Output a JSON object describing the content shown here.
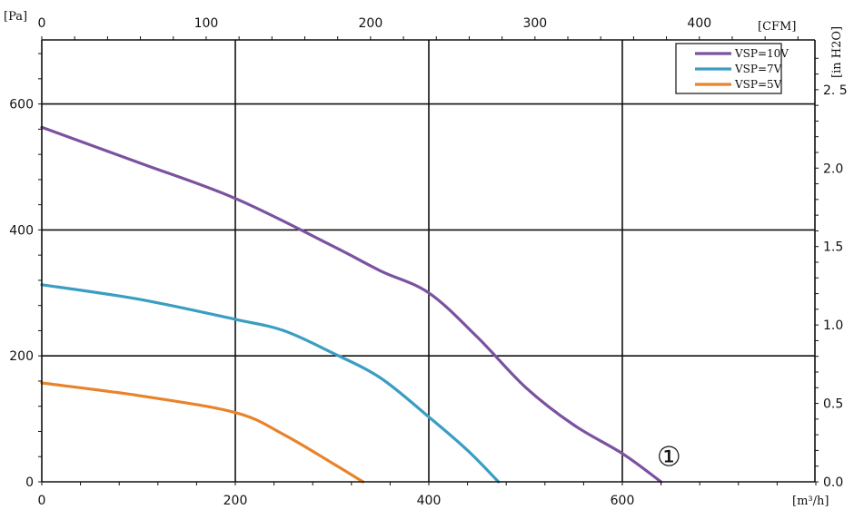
{
  "chart_data": {
    "type": "line",
    "title": "",
    "xlabel": "",
    "ylabel": "",
    "units": {
      "x_bottom": "[m³/h]",
      "x_top": "[CFM]",
      "y_left": "[Pa]",
      "y_right": "[in H2O]"
    },
    "xlim": [
      0,
      820
    ],
    "ylim": [
      0,
      700
    ],
    "x_ticks": [
      0,
      200,
      400,
      600
    ],
    "y_ticks": [
      0,
      200,
      400,
      600
    ],
    "x_top_ticks": [
      0,
      100,
      200,
      300,
      400
    ],
    "x_top_tick_labels": [
      "0",
      "100",
      "200",
      "300",
      "400"
    ],
    "y_right_ticks": [
      0.0,
      0.5,
      1.0,
      1.5,
      2.0,
      2.5
    ],
    "y_right_tick_labels": [
      "0.0",
      "0.5",
      "1.0",
      "1.5",
      "2.0",
      "2. 5"
    ],
    "grid": true,
    "legend_position": "top-right",
    "annotation": {
      "text": "①",
      "x": 645,
      "y": 25
    },
    "series": [
      {
        "name": "VSP=10V",
        "color": "#7b52a0",
        "points": [
          [
            0,
            563
          ],
          [
            100,
            507
          ],
          [
            200,
            450
          ],
          [
            300,
            375
          ],
          [
            350,
            335
          ],
          [
            400,
            300
          ],
          [
            450,
            230
          ],
          [
            500,
            150
          ],
          [
            550,
            90
          ],
          [
            600,
            45
          ],
          [
            640,
            0
          ]
        ]
      },
      {
        "name": "VSP=7V",
        "color": "#3a9ec2",
        "points": [
          [
            0,
            313
          ],
          [
            100,
            290
          ],
          [
            200,
            258
          ],
          [
            250,
            240
          ],
          [
            300,
            205
          ],
          [
            350,
            165
          ],
          [
            400,
            103
          ],
          [
            440,
            50
          ],
          [
            472,
            0
          ]
        ]
      },
      {
        "name": "VSP=5V",
        "color": "#e8832b",
        "points": [
          [
            0,
            157
          ],
          [
            100,
            137
          ],
          [
            200,
            110
          ],
          [
            250,
            75
          ],
          [
            300,
            30
          ],
          [
            332,
            0
          ]
        ]
      }
    ]
  }
}
